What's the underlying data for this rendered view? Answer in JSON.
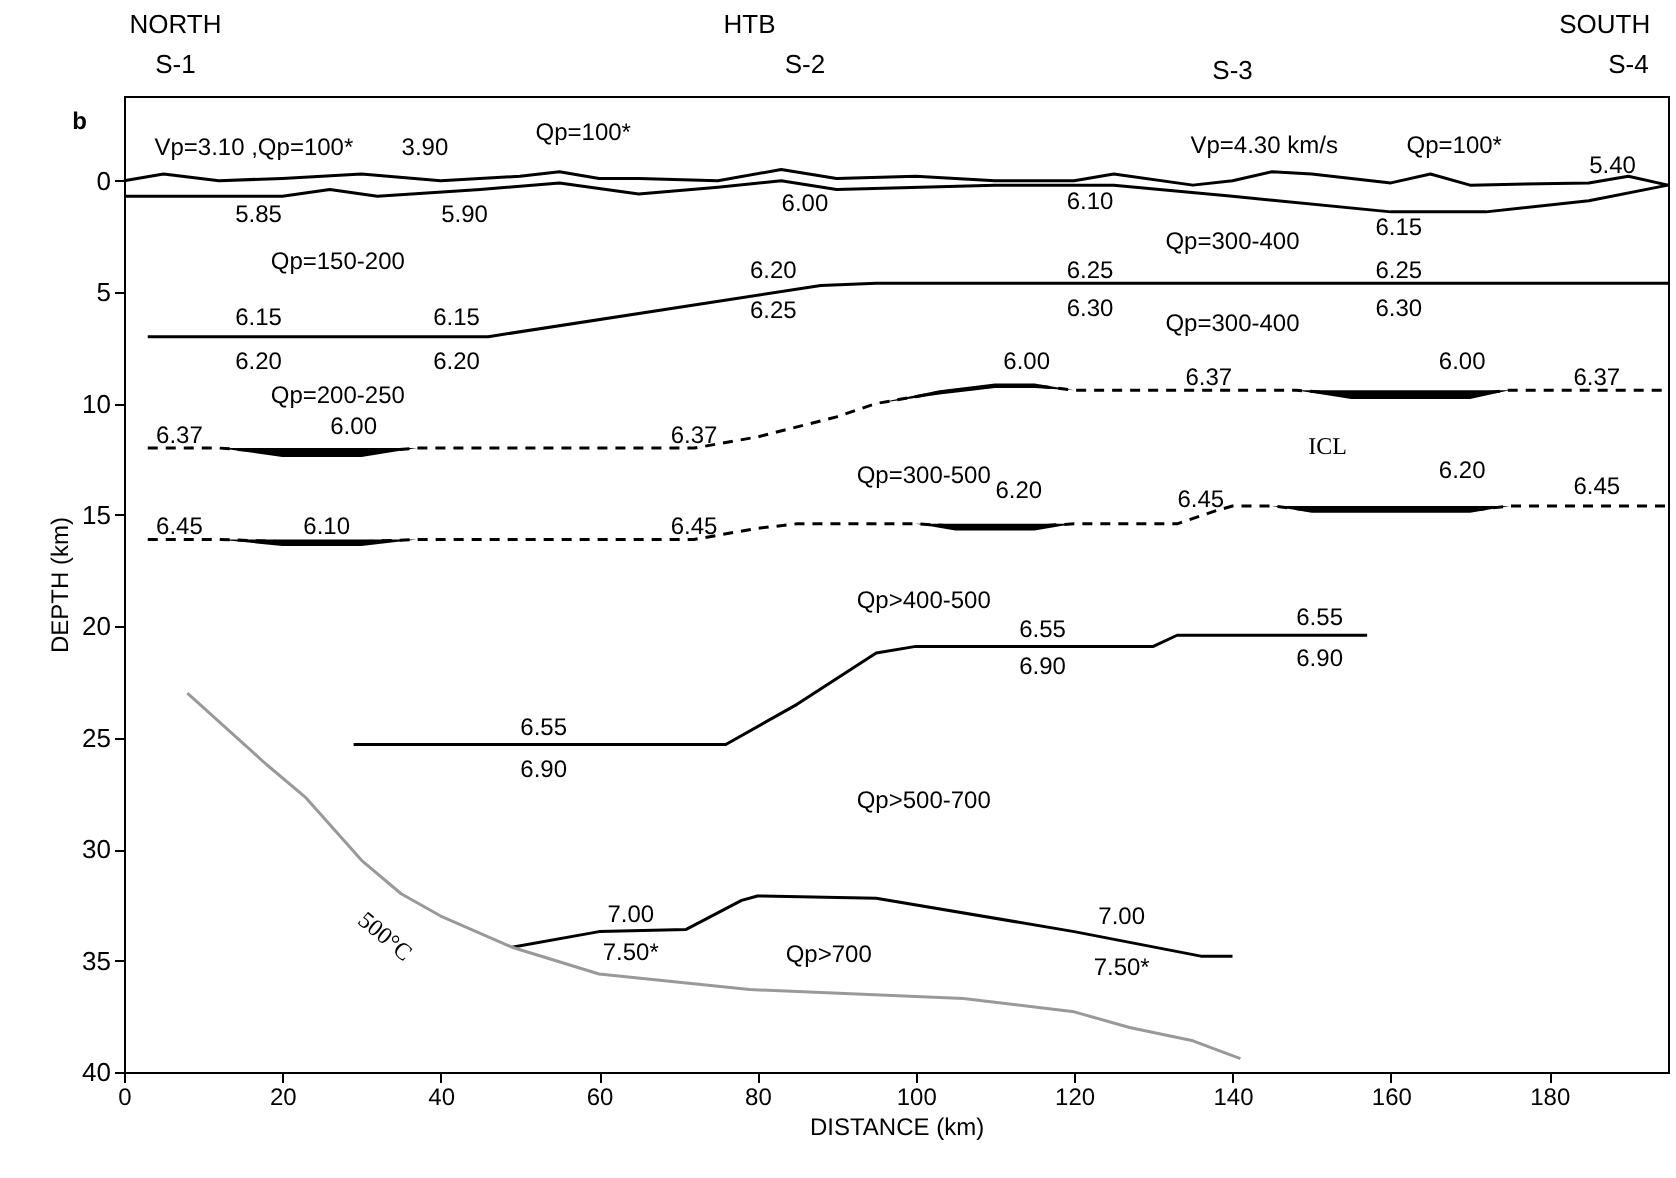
{
  "chart_data": {
    "type": "line",
    "xlabel": "DISTANCE (km)",
    "ylabel": "DEPTH (km)",
    "xlim": [
      0,
      195
    ],
    "xticks": [
      0,
      20,
      40,
      60,
      80,
      100,
      120,
      140,
      160,
      180
    ],
    "ylim": [
      40,
      -3.8
    ],
    "yticks": [
      0,
      5,
      10,
      15,
      20,
      25,
      30,
      35,
      40
    ],
    "grid": false,
    "legend": false,
    "marker": "none",
    "series": [
      {
        "color": "#000000",
        "line_style": "solid",
        "x": [
          0,
          5,
          12,
          20,
          30,
          40,
          50,
          55,
          60,
          65,
          75,
          83,
          90,
          100,
          110,
          120,
          125,
          135,
          140,
          145,
          150,
          160,
          165,
          170,
          185,
          190,
          195
        ],
        "values": [
          0,
          -0.3,
          0,
          -0.1,
          -0.3,
          0,
          -0.2,
          -0.4,
          -0.1,
          -0.1,
          0,
          -0.5,
          -0.1,
          -0.2,
          0,
          0,
          -0.3,
          0.2,
          0,
          -0.4,
          -0.3,
          0.1,
          -0.3,
          0.2,
          0.1,
          -0.2,
          0.2
        ]
      },
      {
        "color": "#000000",
        "line_style": "solid",
        "x": [
          0,
          20,
          26,
          32,
          45,
          55,
          65,
          75,
          83,
          90,
          110,
          125,
          140,
          160,
          172,
          185,
          195
        ],
        "values": [
          0.7,
          0.7,
          0.4,
          0.7,
          0.4,
          0.1,
          0.6,
          0.3,
          0,
          0.4,
          0.2,
          0.2,
          0.7,
          1.4,
          1.4,
          0.9,
          0.2
        ]
      },
      {
        "color": "#000000",
        "line_style": "solid",
        "x": [
          3,
          46,
          88,
          95,
          195
        ],
        "values": [
          7,
          7,
          4.7,
          4.6,
          4.6
        ]
      },
      {
        "color": "#000000",
        "line_style": "dashed",
        "x": [
          3,
          12,
          20,
          30,
          37,
          72,
          80,
          90,
          95,
          103,
          110,
          115,
          120,
          148,
          155,
          170,
          175,
          195
        ],
        "values": [
          12,
          12,
          12.2,
          12.2,
          12,
          12,
          11.5,
          10.6,
          10,
          9.5,
          9.2,
          9.2,
          9.4,
          9.4,
          9.6,
          9.6,
          9.4,
          9.4
        ],
        "lower": [
          null,
          12,
          12,
          12,
          12,
          null,
          null,
          null,
          10,
          9.4,
          9.1,
          9.1,
          9.4,
          9.4,
          9.4,
          9.4,
          9.4,
          null
        ],
        "upper": [
          null,
          12,
          12.4,
          12.4,
          12,
          null,
          null,
          null,
          10,
          9.6,
          9.3,
          9.3,
          9.4,
          9.4,
          9.8,
          9.8,
          9.4,
          null
        ]
      },
      {
        "color": "#000000",
        "line_style": "dashed",
        "x": [
          3,
          12,
          20,
          30,
          37,
          72,
          80,
          85,
          100,
          105,
          115,
          120,
          133,
          138,
          140,
          145,
          150,
          170,
          175,
          195
        ],
        "values": [
          16.1,
          16.1,
          16.2,
          16.2,
          16.1,
          16.1,
          15.6,
          15.4,
          15.4,
          15.5,
          15.5,
          15.4,
          15.4,
          14.8,
          14.6,
          14.6,
          14.8,
          14.8,
          14.6,
          14.6
        ],
        "lower": [
          null,
          16.1,
          16.1,
          16.1,
          16.1,
          null,
          null,
          null,
          15.4,
          15.4,
          15.4,
          15.4,
          null,
          null,
          null,
          14.6,
          14.6,
          14.6,
          14.6,
          null
        ],
        "upper": [
          null,
          16.1,
          16.4,
          16.4,
          16.1,
          null,
          null,
          null,
          15.4,
          15.7,
          15.7,
          15.4,
          null,
          null,
          null,
          14.6,
          14.9,
          14.9,
          14.6,
          null
        ]
      },
      {
        "color": "#000000",
        "line_style": "solid",
        "x": [
          29,
          76,
          85,
          95,
          100,
          130,
          133,
          157
        ],
        "values": [
          25.3,
          25.3,
          23.5,
          21.2,
          20.9,
          20.9,
          20.4,
          20.4
        ]
      },
      {
        "color": "#000000",
        "line_style": "solid",
        "x": [
          49,
          60,
          71,
          78,
          80,
          95,
          120,
          136,
          140
        ],
        "values": [
          34.4,
          33.7,
          33.6,
          32.3,
          32.1,
          32.2,
          33.7,
          34.8,
          34.8
        ]
      },
      {
        "color": "#999999",
        "line_style": "solid",
        "x": [
          8,
          18,
          23,
          30,
          35,
          40,
          49,
          60,
          79,
          106,
          120,
          127,
          135,
          141
        ],
        "values": [
          23,
          26.2,
          27.7,
          30.5,
          32,
          33,
          34.4,
          35.6,
          36.3,
          36.7,
          37.3,
          38,
          38.6,
          39.4
        ]
      }
    ],
    "annotations": [
      "b",
      "NORTH",
      "S-1",
      "HTB",
      "S-2",
      "S-3",
      "SOUTH",
      "S-4",
      "Vp=3.10 ,Qp=100*",
      "3.90",
      "Qp=100*",
      "5.85",
      "5.90",
      "6.00",
      "6.10",
      "Vp=4.30 km/s",
      "Qp=100*",
      "5.40",
      "6.15",
      "Qp=150-200",
      "Qp=300-400",
      "6.20",
      "6.25",
      "6.25",
      "6.30",
      "6.25",
      "6.30",
      "Qp=300-400",
      "6.15",
      "6.15",
      "6.20",
      "6.20",
      "Qp=200-250",
      "6.37",
      "6.00",
      "6.37",
      "6.00",
      "6.37",
      "6.00",
      "6.37",
      "ICL",
      "Qp=300-500",
      "6.45",
      "6.10",
      "6.45",
      "6.20",
      "6.45",
      "6.20",
      "6.45",
      "Qp>400-500",
      "6.55",
      "6.90",
      "6.55",
      "6.90",
      "6.55",
      "6.90",
      "Qp>500-700",
      "7.00",
      "7.50*",
      "Qp>700",
      "7.00",
      "7.50*",
      "500°C"
    ]
  }
}
